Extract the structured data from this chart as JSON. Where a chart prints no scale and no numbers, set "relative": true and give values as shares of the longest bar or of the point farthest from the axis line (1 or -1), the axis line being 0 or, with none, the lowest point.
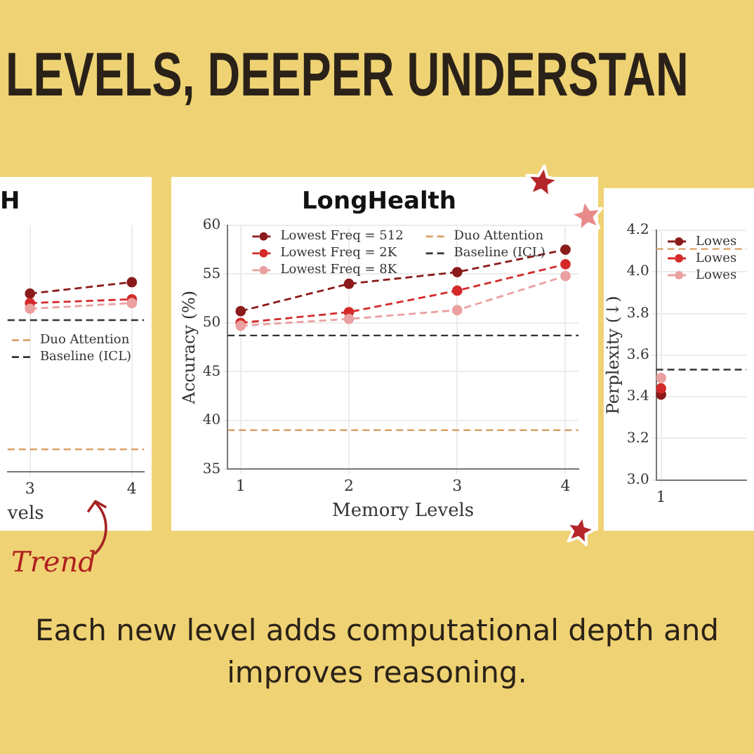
{
  "chart_data": [
    {
      "type": "line",
      "title": "H",
      "xlabel": "vels",
      "categories": [
        "3",
        "4"
      ],
      "relative": true,
      "series": [
        {
          "color": "#8b1a1a",
          "values": [
            0.94,
            1
          ]
        },
        {
          "color": "#d42a2a",
          "values": [
            0.89,
            0.91
          ]
        },
        {
          "color": "#eaa0a0",
          "values": [
            0.86,
            0.89
          ]
        }
      ],
      "ref_lines": [
        {
          "axis": "y",
          "value": 0.12,
          "label": "Duo Attention",
          "color": "#d9a066",
          "line_style": "dashed"
        },
        {
          "axis": "y",
          "value": 0.8,
          "label": "Baseline (ICL)",
          "color": "#333333",
          "line_style": "dashed"
        }
      ],
      "line_style": "dashed",
      "marker": "circle",
      "grid": "x",
      "legend": "center",
      "tick_labels": "x",
      "annotations": [
        "Trend"
      ]
    },
    {
      "type": "line",
      "title": "LongHealth",
      "xlabel": "Memory Levels",
      "ylabel": "Accuracy (%)",
      "categories": [
        "1",
        "2",
        "3",
        "4"
      ],
      "ylim": [
        35,
        60
      ],
      "yticks": [
        35,
        40,
        45,
        50,
        55,
        60
      ],
      "series": [
        {
          "name": "Lowest Freq = 512",
          "color": "#8b1a1a",
          "values": [
            51.2,
            54.0,
            55.2,
            57.5
          ]
        },
        {
          "name": "Lowest Freq = 2K",
          "color": "#d42a2a",
          "values": [
            50.0,
            51.1,
            53.3,
            56.0
          ]
        },
        {
          "name": "Lowest Freq = 8K",
          "color": "#eaa0a0",
          "values": [
            49.7,
            50.4,
            51.3,
            54.8
          ]
        }
      ],
      "ref_lines": [
        {
          "axis": "y",
          "value": 39.0,
          "label": "Duo Attention",
          "color": "#d9a066",
          "line_style": "dashed"
        },
        {
          "axis": "y",
          "value": 48.7,
          "label": "Baseline (ICL)",
          "color": "#333333",
          "line_style": "dashed"
        }
      ],
      "line_style": "dashed",
      "marker": "circle",
      "grid": true,
      "legend": "top",
      "annotations": [
        "LEVELS, DEEPER UNDERSTAN",
        "Each new level adds computational depth and improves reasoning."
      ]
    },
    {
      "type": "line",
      "ylabel": "Perplexity (↓)",
      "categories": [
        "1"
      ],
      "ylim": [
        3.0,
        4.2
      ],
      "yticks": [
        {
          "value": 3.0,
          "label": "3.0"
        },
        3.2,
        3.4,
        3.6,
        3.8,
        {
          "value": 4.0,
          "label": "4.0"
        },
        4.2
      ],
      "series": [
        {
          "name": "Lowes",
          "color": "#8b1a1a",
          "values": [
            3.41
          ]
        },
        {
          "name": "Lowes",
          "color": "#d42a2a",
          "values": [
            3.44
          ]
        },
        {
          "name": "Lowes",
          "color": "#eaa0a0",
          "values": [
            3.49
          ]
        }
      ],
      "ref_lines": [
        {
          "axis": "y",
          "value": 4.11,
          "color": "#d9a066",
          "line_style": "dashed"
        },
        {
          "axis": "y",
          "value": 3.53,
          "color": "#333333",
          "line_style": "dashed"
        }
      ],
      "line_style": "dashed",
      "marker": "circle",
      "grid": true,
      "legend": "top right"
    }
  ]
}
